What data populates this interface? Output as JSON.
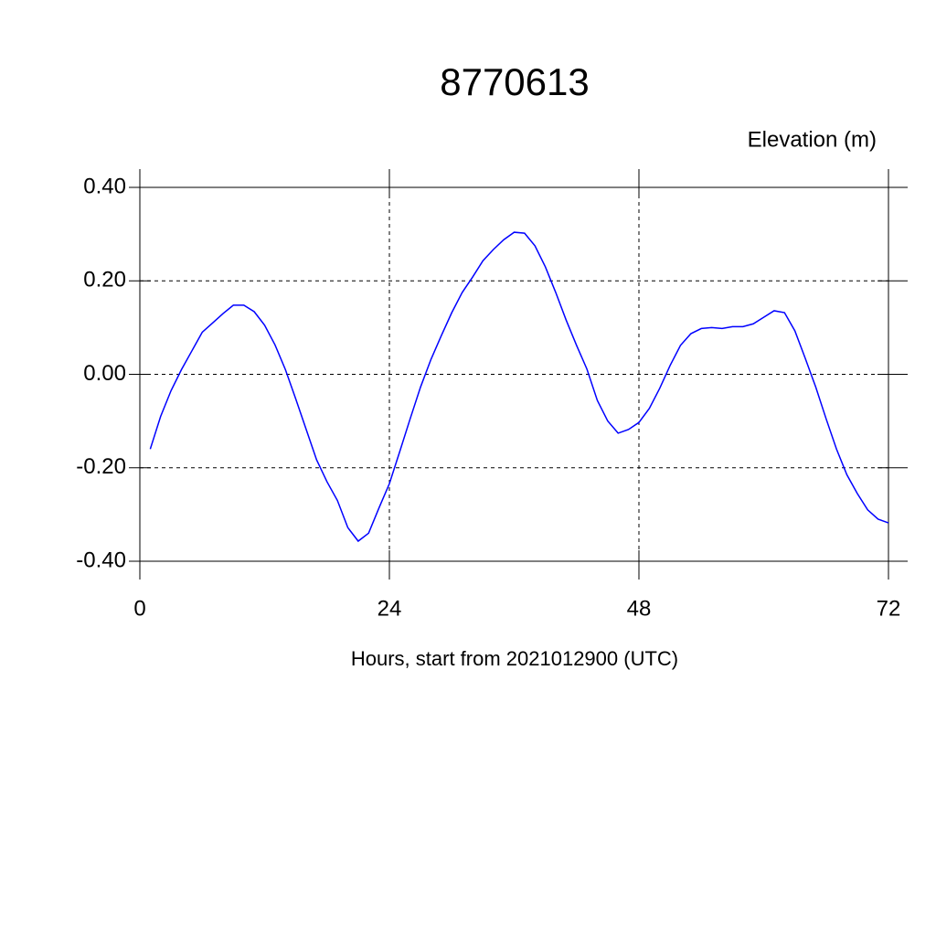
{
  "chart_data": {
    "type": "line",
    "title": "8770613",
    "ylabel": "Elevation (m)",
    "xlabel": "Hours, start from 2021012900 (UTC)",
    "x": [
      1,
      2,
      3,
      4,
      5,
      6,
      7,
      8,
      9,
      10,
      11,
      12,
      13,
      14,
      15,
      16,
      17,
      18,
      19,
      20,
      21,
      22,
      23,
      24,
      25,
      26,
      27,
      28,
      29,
      30,
      31,
      32,
      33,
      34,
      35,
      36,
      37,
      38,
      39,
      40,
      41,
      42,
      43,
      44,
      45,
      46,
      47,
      48,
      49,
      50,
      51,
      52,
      53,
      54,
      55,
      56,
      57,
      58,
      59,
      60,
      61,
      62,
      63,
      64,
      65,
      66,
      67,
      68,
      69,
      70,
      71,
      72
    ],
    "series": [
      {
        "color": "#0000ff",
        "values": [
          -0.16,
          -0.09,
          -0.035,
          0.01,
          0.05,
          0.09,
          0.11,
          0.13,
          0.148,
          0.148,
          0.134,
          0.105,
          0.063,
          0.01,
          -0.053,
          -0.118,
          -0.183,
          -0.23,
          -0.27,
          -0.328,
          -0.357,
          -0.34,
          -0.286,
          -0.234,
          -0.165,
          -0.095,
          -0.027,
          0.032,
          0.083,
          0.132,
          0.175,
          0.208,
          0.243,
          0.267,
          0.288,
          0.304,
          0.302,
          0.275,
          0.23,
          0.175,
          0.116,
          0.062,
          0.011,
          -0.056,
          -0.1,
          -0.126,
          -0.118,
          -0.103,
          -0.073,
          -0.03,
          0.019,
          0.062,
          0.087,
          0.098,
          0.1,
          0.098,
          0.102,
          0.102,
          0.108,
          0.122,
          0.136,
          0.132,
          0.093,
          0.034,
          -0.027,
          -0.095,
          -0.16,
          -0.215,
          -0.255,
          -0.29,
          -0.31,
          -0.318
        ]
      }
    ],
    "xlim": [
      0,
      72
    ],
    "xticks": [
      0,
      24,
      48,
      72
    ],
    "ylim": [
      -0.4,
      0.4
    ],
    "yticks": [
      {
        "value": -0.4,
        "label": "-0.40"
      },
      {
        "value": -0.2,
        "label": "-0.20"
      },
      {
        "value": 0,
        "label": "0.00"
      },
      {
        "value": 0.2,
        "label": "0.20"
      },
      {
        "value": 0.4,
        "label": "0.40"
      }
    ],
    "grid": true
  }
}
